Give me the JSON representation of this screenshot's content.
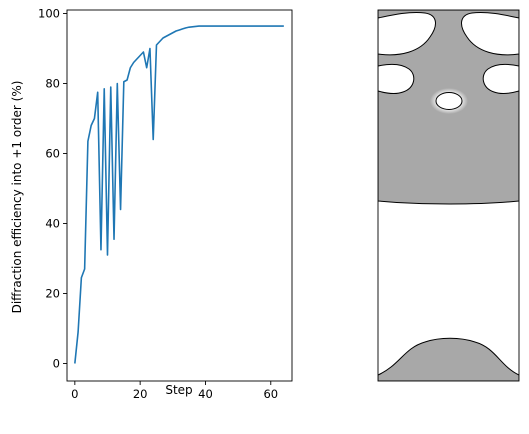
{
  "chart_data": [
    {
      "type": "line",
      "title": "",
      "xlabel": "Step",
      "ylabel": "Diffraction efficiency into +1 order (%)",
      "xlim": [
        -2.4,
        66.5
      ],
      "ylim": [
        -5,
        101
      ],
      "grid": false,
      "x_ticks": [
        0,
        20,
        40,
        60
      ],
      "y_ticks": [
        0,
        20,
        40,
        60,
        80,
        100
      ],
      "series": [
        {
          "color": "#1f77b4",
          "x": [
            0,
            1,
            2,
            3,
            4,
            5,
            6,
            7,
            8,
            9,
            10,
            11,
            12,
            13,
            14,
            15,
            16,
            17,
            18,
            19,
            20,
            21,
            22,
            23,
            24,
            25,
            26,
            27,
            28,
            29,
            30,
            31,
            32,
            33,
            34,
            35,
            36,
            37,
            38,
            39,
            40,
            41,
            42,
            43,
            44,
            45,
            46,
            47,
            48,
            49,
            50,
            51,
            52,
            53,
            54,
            55,
            56,
            57,
            58,
            59,
            60,
            61,
            62,
            63,
            64
          ],
          "y": [
            0,
            9,
            24.5,
            27,
            63.5,
            68,
            70,
            77.5,
            32.5,
            78.5,
            31,
            79,
            35.5,
            80,
            44,
            80.5,
            81,
            84.5,
            86,
            87,
            88,
            89,
            84.5,
            90,
            64,
            91,
            92,
            93,
            93.5,
            94,
            94.5,
            95,
            95.3,
            95.6,
            95.9,
            96.1,
            96.2,
            96.3,
            96.4,
            96.4,
            96.4,
            96.4,
            96.4,
            96.4,
            96.4,
            96.4,
            96.4,
            96.4,
            96.4,
            96.4,
            96.4,
            96.4,
            96.4,
            96.4,
            96.4,
            96.4,
            96.4,
            96.4,
            96.4,
            96.4,
            96.4,
            96.4,
            96.4,
            96.4,
            96.4
          ]
        }
      ]
    },
    {
      "type": "heatmap",
      "title": "",
      "colors": {
        "solid": "#a8a8a8",
        "void": "#ffffff",
        "contour": "#000000"
      }
    }
  ]
}
